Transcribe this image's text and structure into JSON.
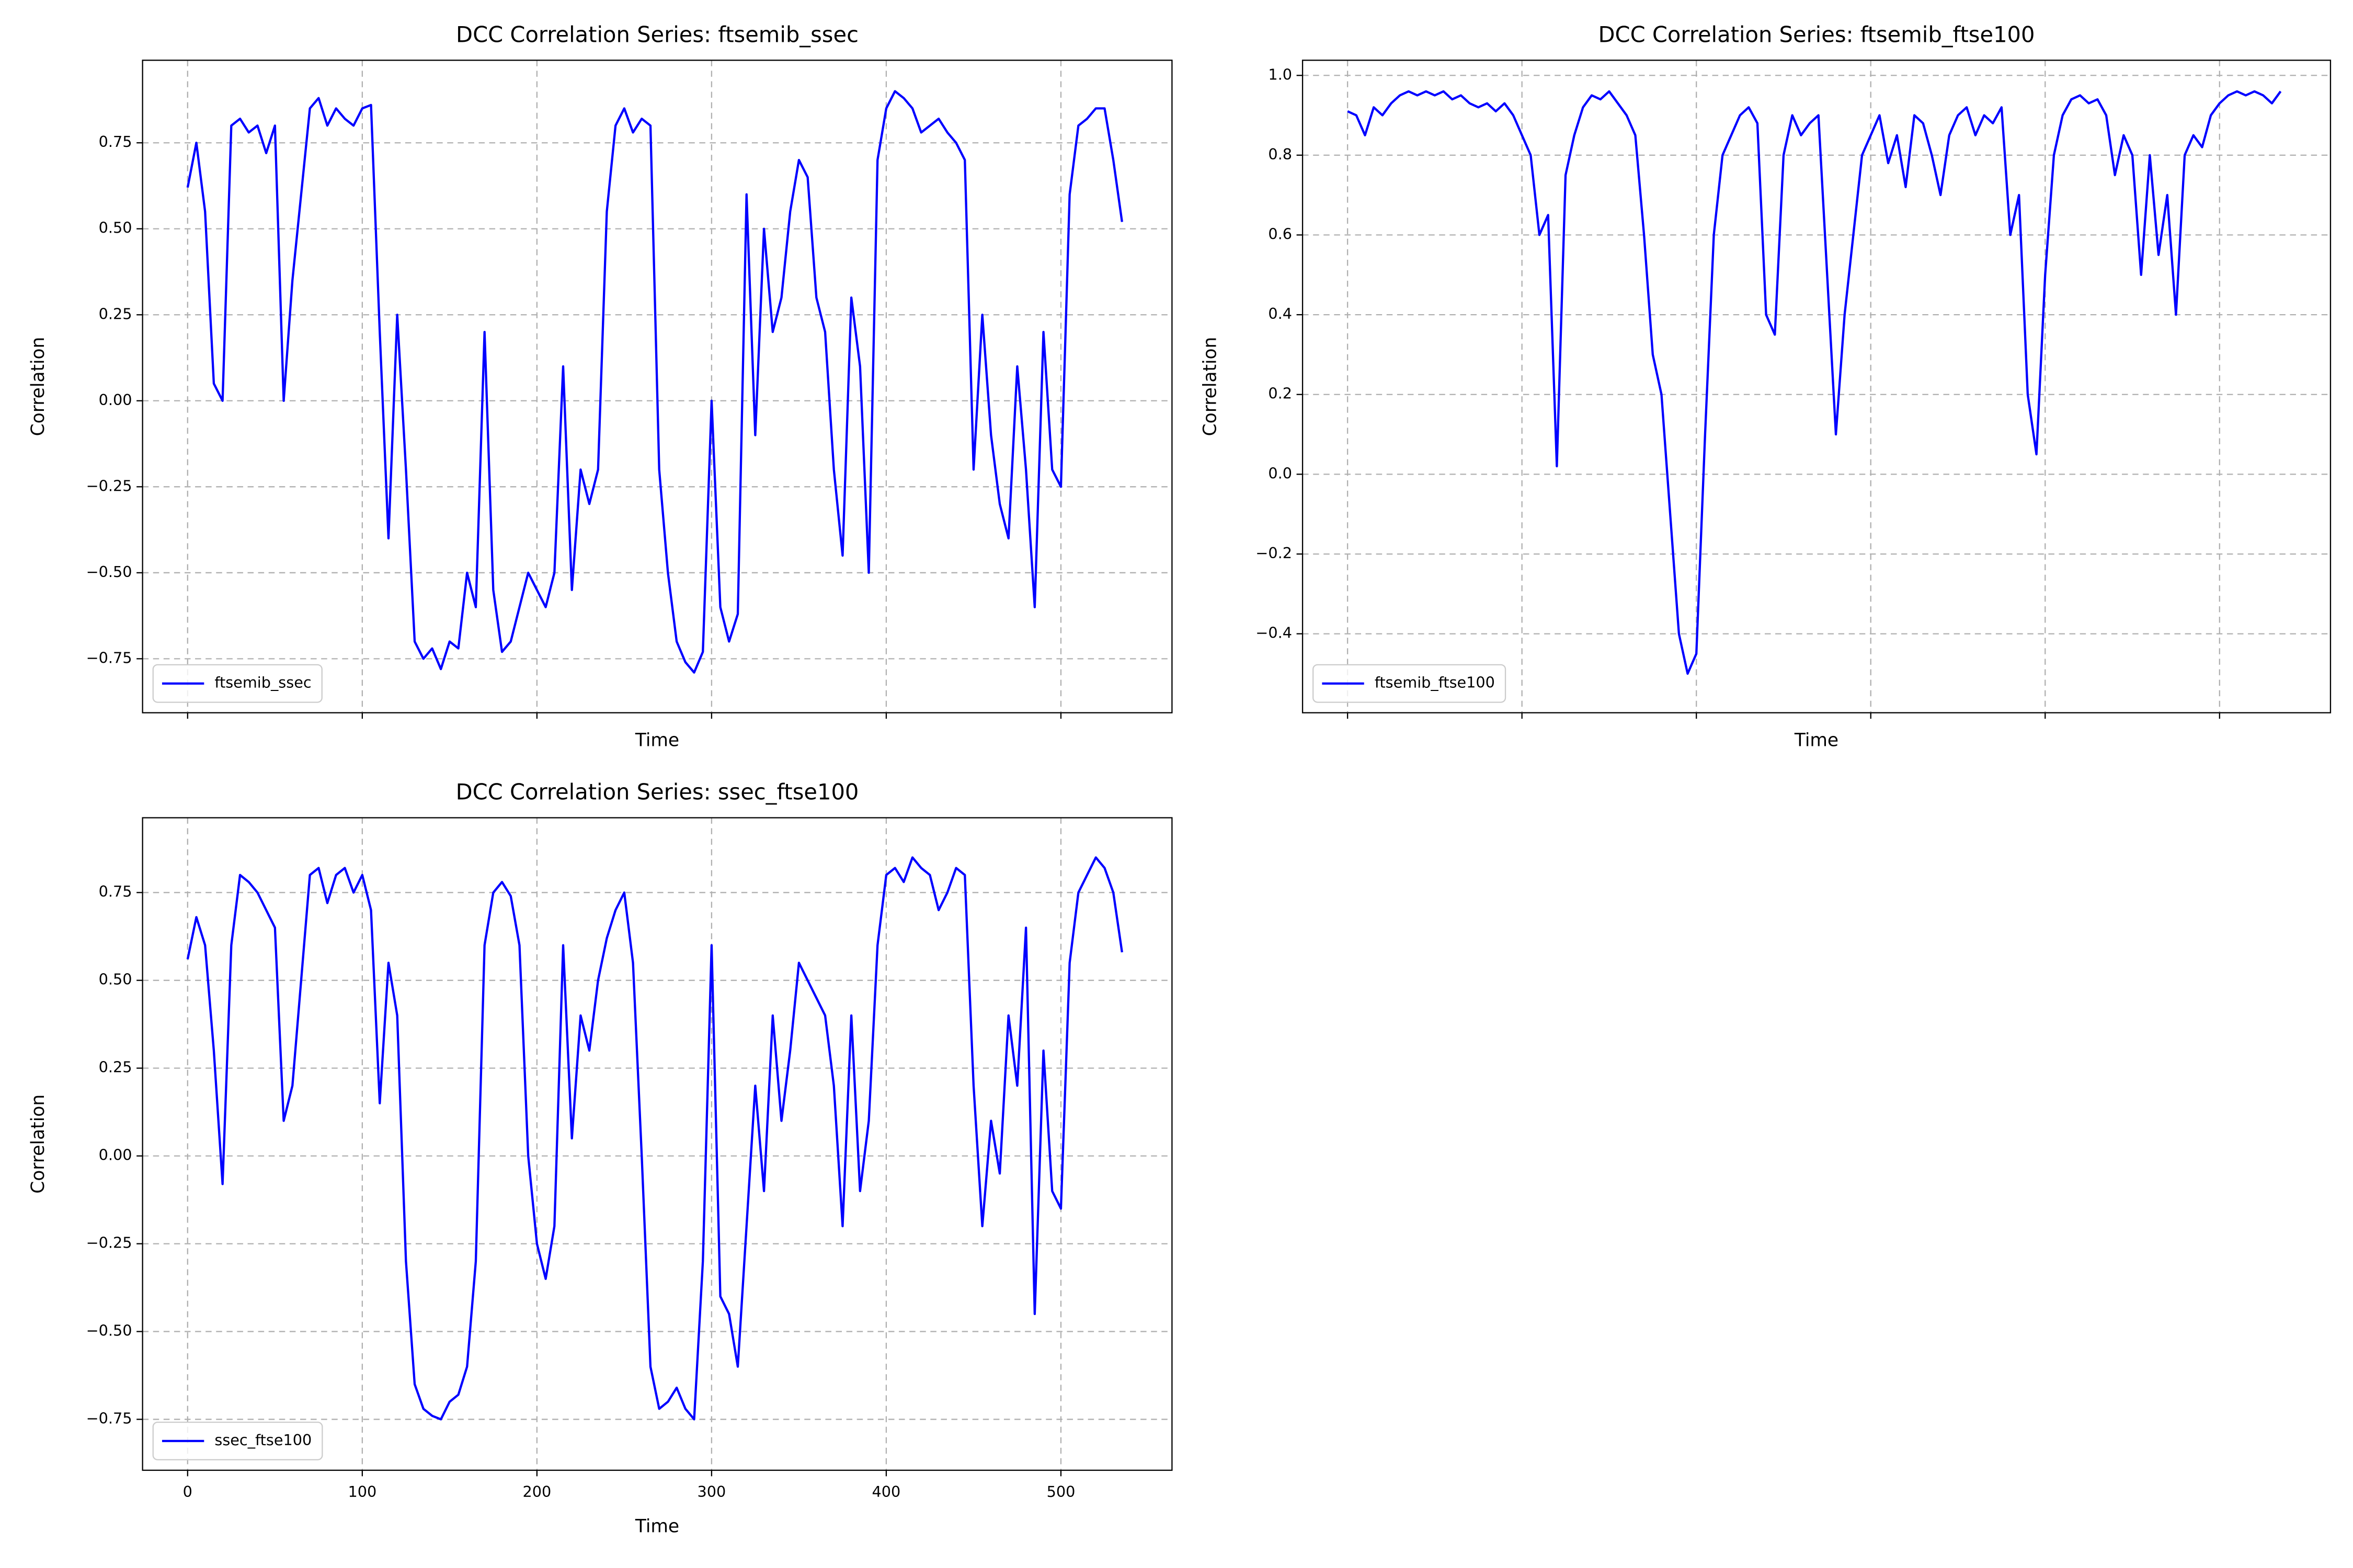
{
  "chart_data": [
    {
      "type": "line",
      "title": "DCC Correlation Series: ftsemib_ssec",
      "x_label": "Time",
      "y_label": "Correlation",
      "x": [
        0,
        5,
        10,
        15,
        20,
        25,
        30,
        35,
        40,
        45,
        50,
        55,
        60,
        65,
        70,
        75,
        80,
        85,
        90,
        95,
        100,
        105,
        110,
        115,
        120,
        125,
        130,
        135,
        140,
        145,
        150,
        155,
        160,
        165,
        170,
        175,
        180,
        185,
        190,
        195,
        200,
        205,
        210,
        215,
        220,
        225,
        230,
        235,
        240,
        245,
        250,
        255,
        260,
        265,
        270,
        275,
        280,
        285,
        290,
        295,
        300,
        305,
        310,
        315,
        320,
        325,
        330,
        335,
        340,
        345,
        350,
        355,
        360,
        365,
        370,
        375,
        380,
        385,
        390,
        395,
        400,
        405,
        410,
        415,
        420,
        425,
        430,
        435,
        440,
        445,
        450,
        455,
        460,
        465,
        470,
        475,
        480,
        485,
        490,
        495,
        500,
        505,
        510,
        515,
        520,
        525,
        530,
        535
      ],
      "series": [
        {
          "name": "ftsemib_ssec",
          "color": "#0000ff",
          "values": [
            0.62,
            0.75,
            0.55,
            0.05,
            0.0,
            0.8,
            0.82,
            0.78,
            0.8,
            0.72,
            0.8,
            0.0,
            0.35,
            0.6,
            0.85,
            0.88,
            0.8,
            0.85,
            0.82,
            0.8,
            0.85,
            0.86,
            0.2,
            -0.4,
            0.25,
            -0.2,
            -0.7,
            -0.75,
            -0.72,
            -0.78,
            -0.7,
            -0.72,
            -0.5,
            -0.6,
            0.2,
            -0.55,
            -0.73,
            -0.7,
            -0.6,
            -0.5,
            -0.55,
            -0.6,
            -0.5,
            0.1,
            -0.55,
            -0.2,
            -0.3,
            -0.2,
            0.55,
            0.8,
            0.85,
            0.78,
            0.82,
            0.8,
            -0.2,
            -0.5,
            -0.7,
            -0.76,
            -0.79,
            -0.73,
            0.0,
            -0.6,
            -0.7,
            -0.62,
            0.6,
            -0.1,
            0.5,
            0.2,
            0.3,
            0.55,
            0.7,
            0.65,
            0.3,
            0.2,
            -0.2,
            -0.45,
            0.3,
            0.1,
            -0.5,
            0.7,
            0.85,
            0.9,
            0.88,
            0.85,
            0.78,
            0.8,
            0.82,
            0.78,
            0.75,
            0.7,
            -0.2,
            0.25,
            -0.1,
            -0.3,
            -0.4,
            0.1,
            -0.2,
            -0.6,
            0.2,
            -0.2,
            -0.25,
            0.6,
            0.8,
            0.82,
            0.85,
            0.85,
            0.7,
            0.52
          ]
        }
      ],
      "xlim": [
        -25.8,
        563.6
      ],
      "xticks": [
        0,
        100,
        200,
        300,
        400,
        500
      ],
      "show_xtick_labels": false,
      "ylim": [
        -0.907,
        0.99
      ],
      "yticks": [
        {
          "value": -0.75,
          "label": "−0.75"
        },
        {
          "value": -0.5,
          "label": "−0.50"
        },
        {
          "value": -0.25,
          "label": "−0.25"
        },
        {
          "value": 0,
          "label": "0.00"
        },
        {
          "value": 0.25,
          "label": "0.25"
        },
        {
          "value": 0.5,
          "label": "0.50"
        },
        {
          "value": 0.75,
          "label": "0.75"
        }
      ],
      "grid": true,
      "legend": "lower left"
    },
    {
      "type": "line",
      "title": "DCC Correlation Series: ftsemib_ftse100",
      "x_label": "Time",
      "y_label": "Correlation",
      "x": [
        0,
        5,
        10,
        15,
        20,
        25,
        30,
        35,
        40,
        45,
        50,
        55,
        60,
        65,
        70,
        75,
        80,
        85,
        90,
        95,
        100,
        105,
        110,
        115,
        120,
        125,
        130,
        135,
        140,
        145,
        150,
        155,
        160,
        165,
        170,
        175,
        180,
        185,
        190,
        195,
        200,
        205,
        210,
        215,
        220,
        225,
        230,
        235,
        240,
        245,
        250,
        255,
        260,
        265,
        270,
        275,
        280,
        285,
        290,
        295,
        300,
        305,
        310,
        315,
        320,
        325,
        330,
        335,
        340,
        345,
        350,
        355,
        360,
        365,
        370,
        375,
        380,
        385,
        390,
        395,
        400,
        405,
        410,
        415,
        420,
        425,
        430,
        435,
        440,
        445,
        450,
        455,
        460,
        465,
        470,
        475,
        480,
        485,
        490,
        495,
        500,
        505,
        510,
        515,
        520,
        525,
        530,
        535
      ],
      "series": [
        {
          "name": "ftsemib_ftse100",
          "color": "#0000ff",
          "values": [
            0.91,
            0.9,
            0.85,
            0.92,
            0.9,
            0.93,
            0.95,
            0.96,
            0.95,
            0.96,
            0.95,
            0.96,
            0.94,
            0.95,
            0.93,
            0.92,
            0.93,
            0.91,
            0.93,
            0.9,
            0.85,
            0.8,
            0.6,
            0.65,
            0.02,
            0.75,
            0.85,
            0.92,
            0.95,
            0.94,
            0.96,
            0.93,
            0.9,
            0.85,
            0.6,
            0.3,
            0.2,
            -0.1,
            -0.4,
            -0.5,
            -0.45,
            0.1,
            0.6,
            0.8,
            0.85,
            0.9,
            0.92,
            0.88,
            0.4,
            0.35,
            0.8,
            0.9,
            0.85,
            0.88,
            0.9,
            0.5,
            0.1,
            0.4,
            0.6,
            0.8,
            0.85,
            0.9,
            0.78,
            0.85,
            0.72,
            0.9,
            0.88,
            0.8,
            0.7,
            0.85,
            0.9,
            0.92,
            0.85,
            0.9,
            0.88,
            0.92,
            0.6,
            0.7,
            0.2,
            0.05,
            0.5,
            0.8,
            0.9,
            0.94,
            0.95,
            0.93,
            0.94,
            0.9,
            0.75,
            0.85,
            0.8,
            0.5,
            0.8,
            0.55,
            0.7,
            0.4,
            0.8,
            0.85,
            0.82,
            0.9,
            0.93,
            0.95,
            0.96,
            0.95,
            0.96,
            0.95,
            0.93,
            0.96
          ]
        }
      ],
      "xlim": [
        -25.8,
        563.6
      ],
      "xticks": [
        0,
        100,
        200,
        300,
        400,
        500
      ],
      "show_xtick_labels": false,
      "ylim": [
        -0.598,
        1.038
      ],
      "yticks": [
        {
          "value": -0.4,
          "label": "−0.4"
        },
        {
          "value": -0.2,
          "label": "−0.2"
        },
        {
          "value": 0,
          "label": "0.0"
        },
        0.2,
        0.4,
        0.6,
        0.8,
        {
          "value": 1,
          "label": "1.0"
        }
      ],
      "grid": true,
      "legend": "lower left"
    },
    {
      "type": "line",
      "title": "DCC Correlation Series: ssec_ftse100",
      "x_label": "Time",
      "y_label": "Correlation",
      "x": [
        0,
        5,
        10,
        15,
        20,
        25,
        30,
        35,
        40,
        45,
        50,
        55,
        60,
        65,
        70,
        75,
        80,
        85,
        90,
        95,
        100,
        105,
        110,
        115,
        120,
        125,
        130,
        135,
        140,
        145,
        150,
        155,
        160,
        165,
        170,
        175,
        180,
        185,
        190,
        195,
        200,
        205,
        210,
        215,
        220,
        225,
        230,
        235,
        240,
        245,
        250,
        255,
        260,
        265,
        270,
        275,
        280,
        285,
        290,
        295,
        300,
        305,
        310,
        315,
        320,
        325,
        330,
        335,
        340,
        345,
        350,
        355,
        360,
        365,
        370,
        375,
        380,
        385,
        390,
        395,
        400,
        405,
        410,
        415,
        420,
        425,
        430,
        435,
        440,
        445,
        450,
        455,
        460,
        465,
        470,
        475,
        480,
        485,
        490,
        495,
        500,
        505,
        510,
        515,
        520,
        525,
        530,
        535
      ],
      "series": [
        {
          "name": "ssec_ftse100",
          "color": "#0000ff",
          "values": [
            0.56,
            0.68,
            0.6,
            0.3,
            -0.08,
            0.6,
            0.8,
            0.78,
            0.75,
            0.7,
            0.65,
            0.1,
            0.2,
            0.5,
            0.8,
            0.82,
            0.72,
            0.8,
            0.82,
            0.75,
            0.8,
            0.7,
            0.15,
            0.55,
            0.4,
            -0.3,
            -0.65,
            -0.72,
            -0.74,
            -0.75,
            -0.7,
            -0.68,
            -0.6,
            -0.3,
            0.6,
            0.75,
            0.78,
            0.74,
            0.6,
            0.0,
            -0.25,
            -0.35,
            -0.2,
            0.6,
            0.05,
            0.4,
            0.3,
            0.5,
            0.62,
            0.7,
            0.75,
            0.55,
            0.0,
            -0.6,
            -0.72,
            -0.7,
            -0.66,
            -0.72,
            -0.75,
            -0.3,
            0.6,
            -0.4,
            -0.45,
            -0.6,
            -0.2,
            0.2,
            -0.1,
            0.4,
            0.1,
            0.3,
            0.55,
            0.5,
            0.45,
            0.4,
            0.2,
            -0.2,
            0.4,
            -0.1,
            0.1,
            0.6,
            0.8,
            0.82,
            0.78,
            0.85,
            0.82,
            0.8,
            0.7,
            0.75,
            0.82,
            0.8,
            0.2,
            -0.2,
            0.1,
            -0.05,
            0.4,
            0.2,
            0.65,
            -0.45,
            0.3,
            -0.1,
            -0.15,
            0.55,
            0.75,
            0.8,
            0.85,
            0.82,
            0.75,
            0.58
          ]
        }
      ],
      "xlim": [
        -25.8,
        563.6
      ],
      "xticks": [
        0,
        100,
        200,
        300,
        400,
        500
      ],
      "show_xtick_labels": true,
      "ylim": [
        -0.895,
        0.963
      ],
      "yticks": [
        {
          "value": -0.75,
          "label": "−0.75"
        },
        {
          "value": -0.5,
          "label": "−0.50"
        },
        {
          "value": -0.25,
          "label": "−0.25"
        },
        {
          "value": 0,
          "label": "0.00"
        },
        {
          "value": 0.25,
          "label": "0.25"
        },
        {
          "value": 0.5,
          "label": "0.50"
        },
        {
          "value": 0.75,
          "label": "0.75"
        }
      ],
      "grid": true,
      "legend": "lower left"
    }
  ]
}
